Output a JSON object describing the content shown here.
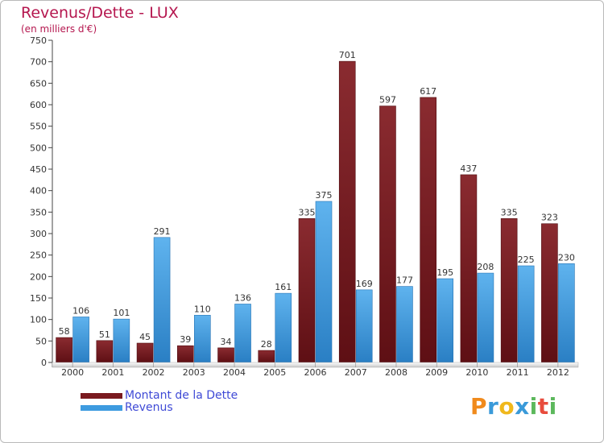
{
  "chart_data": {
    "type": "bar",
    "title": "Revenus/Dette - LUX",
    "subtitle": "(en milliers d'€)",
    "xlabel": "",
    "ylabel": "",
    "categories": [
      "2000",
      "2001",
      "2002",
      "2003",
      "2004",
      "2005",
      "2006",
      "2007",
      "2008",
      "2009",
      "2010",
      "2011",
      "2012"
    ],
    "series": [
      {
        "name": "Montant de la Dette",
        "color": "#7a1a1f",
        "values": [
          58,
          51,
          45,
          39,
          34,
          28,
          335,
          701,
          597,
          617,
          437,
          335,
          323
        ]
      },
      {
        "name": "Revenus",
        "color": "#3d9be0",
        "values": [
          106,
          101,
          291,
          110,
          136,
          161,
          375,
          169,
          177,
          195,
          208,
          225,
          230
        ]
      }
    ],
    "ylim": [
      0,
      750
    ],
    "yticks": [
      0,
      50,
      100,
      150,
      200,
      250,
      300,
      350,
      400,
      450,
      500,
      550,
      600,
      650,
      700,
      750
    ],
    "grid": false,
    "legend_position": "bottom-left"
  },
  "logo": {
    "letters": [
      "P",
      "r",
      "o",
      "x",
      "i",
      "t",
      "i"
    ],
    "colors": [
      "#f08a1c",
      "#3a9ad9",
      "#f0b81c",
      "#3a9ad9",
      "#5cb85c",
      "#e84c3d",
      "#5cb85c"
    ]
  }
}
